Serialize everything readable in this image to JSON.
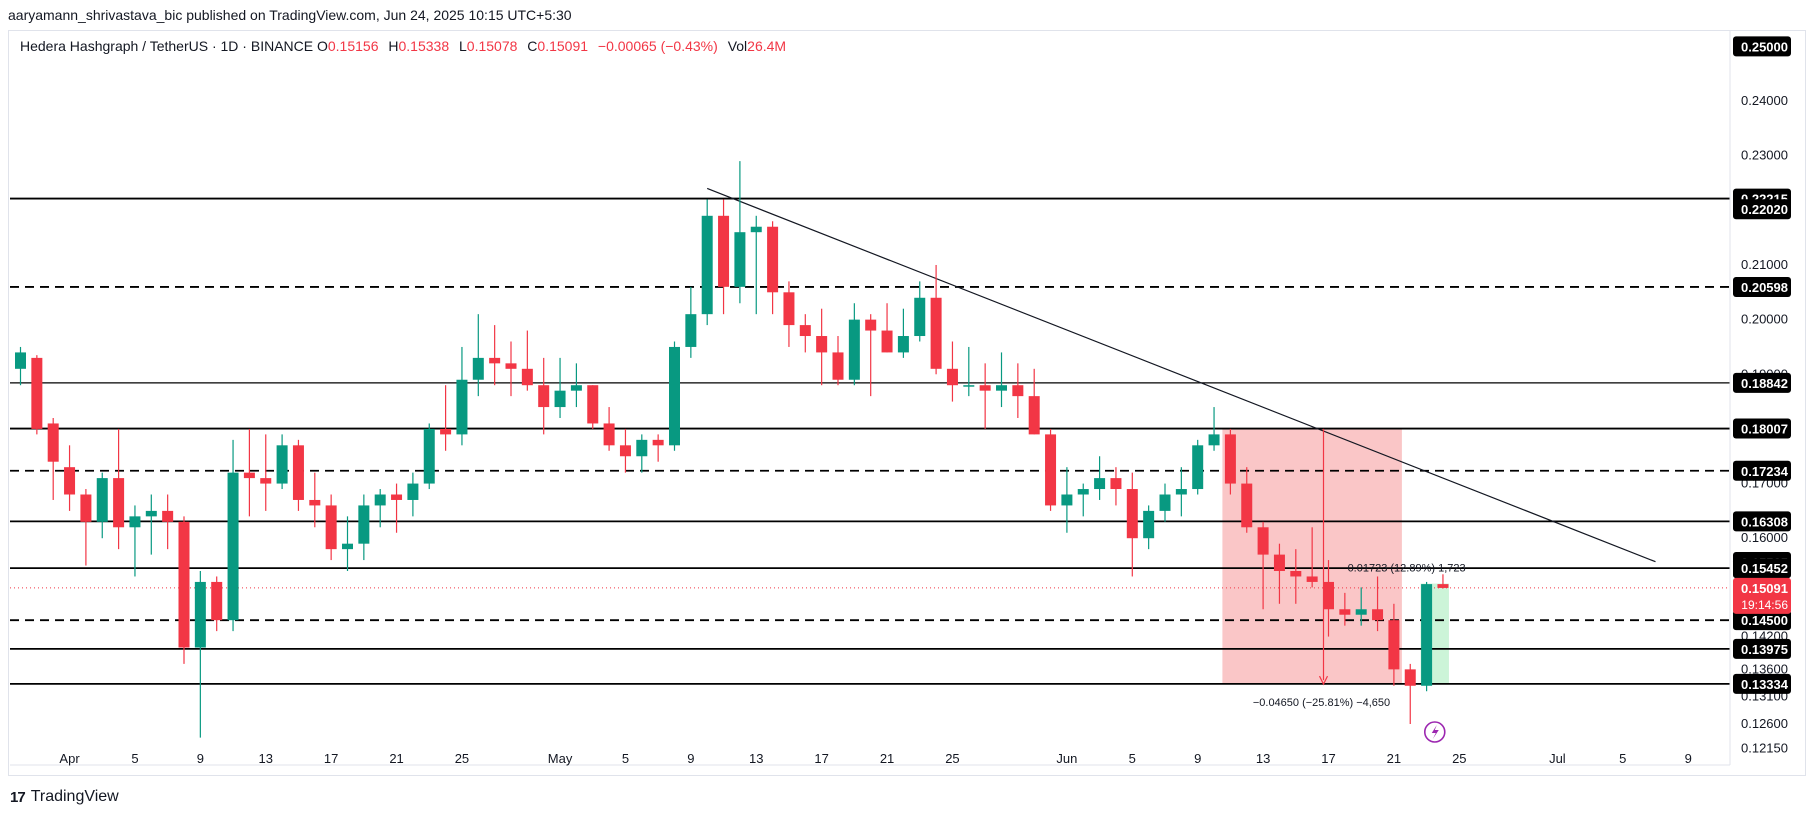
{
  "header": {
    "published": "aaryamann_shrivastava_bic published on TradingView.com, Jun 24, 2025 10:15 UTC+5:30"
  },
  "legend": {
    "symbol": "Hedera Hashgraph / TetherUS · 1D · BINANCE",
    "o_label": "O",
    "o": "0.15156",
    "h_label": "H",
    "h": "0.15338",
    "l_label": "L",
    "l": "0.15078",
    "c_label": "C",
    "c": "0.15091",
    "change": "−0.00065 (−0.43%)",
    "vol_label": "Vol",
    "vol": "26.4M"
  },
  "footer": {
    "brand": "TradingView"
  },
  "colors": {
    "up": "#089981",
    "down": "#f23645",
    "zone": "#f7a7a9",
    "zone_green": "#b7f0c8"
  },
  "chart_data": {
    "type": "candlestick",
    "symbol": "HBAR/USDT",
    "timeframe": "1D",
    "ylim": [
      0.1185,
      0.253
    ],
    "y_ticks": [
      "0.24000",
      "0.23000",
      "0.21000",
      "0.20000",
      "0.19000",
      "0.17000",
      "0.16000",
      "0.14200",
      "0.13600",
      "0.13100",
      "0.12600",
      "0.12150"
    ],
    "x_ticks": [
      {
        "label": "Apr",
        "day": 3
      },
      {
        "label": "5",
        "day": 7
      },
      {
        "label": "9",
        "day": 11
      },
      {
        "label": "13",
        "day": 15
      },
      {
        "label": "17",
        "day": 19
      },
      {
        "label": "21",
        "day": 23
      },
      {
        "label": "25",
        "day": 27
      },
      {
        "label": "May",
        "day": 33
      },
      {
        "label": "5",
        "day": 37
      },
      {
        "label": "9",
        "day": 41
      },
      {
        "label": "13",
        "day": 45
      },
      {
        "label": "17",
        "day": 49
      },
      {
        "label": "21",
        "day": 53
      },
      {
        "label": "25",
        "day": 57
      },
      {
        "label": "Jun",
        "day": 64
      },
      {
        "label": "5",
        "day": 68
      },
      {
        "label": "9",
        "day": 72
      },
      {
        "label": "13",
        "day": 76
      },
      {
        "label": "17",
        "day": 80
      },
      {
        "label": "21",
        "day": 84
      },
      {
        "label": "25",
        "day": 88
      },
      {
        "label": "Jul",
        "day": 94
      },
      {
        "label": "5",
        "day": 98
      },
      {
        "label": "9",
        "day": 102
      }
    ],
    "levels": [
      {
        "value": 0.25,
        "label": "0.25000",
        "style": "none"
      },
      {
        "value": 0.22215,
        "label": "0.22215",
        "style": "solid"
      },
      {
        "value": 0.2202,
        "label": "0.22020",
        "style": "none"
      },
      {
        "value": 0.20598,
        "label": "0.20598",
        "style": "dashed"
      },
      {
        "value": 0.18842,
        "label": "0.18842",
        "style": "solid-thin"
      },
      {
        "value": 0.18007,
        "label": "0.18007",
        "style": "solid"
      },
      {
        "value": 0.17234,
        "label": "0.17234",
        "style": "dashed"
      },
      {
        "value": 0.16308,
        "label": "0.16308",
        "style": "solid"
      },
      {
        "value": 0.15565,
        "label": "0.15565",
        "style": "none"
      },
      {
        "value": 0.15452,
        "label": "0.15452",
        "style": "solid"
      },
      {
        "value": 0.145,
        "label": "0.14500",
        "style": "dashed"
      },
      {
        "value": 0.13975,
        "label": "0.13975",
        "style": "solid"
      },
      {
        "value": 0.13334,
        "label": "0.13334",
        "style": "solid"
      }
    ],
    "last_price": {
      "value": 0.15091,
      "label": "0.15091",
      "countdown": "19:14:56"
    },
    "candles": [
      {
        "d": 0,
        "o": 0.191,
        "h": 0.195,
        "l": 0.188,
        "c": 0.194
      },
      {
        "d": 1,
        "o": 0.193,
        "h": 0.1935,
        "l": 0.179,
        "c": 0.18
      },
      {
        "d": 2,
        "o": 0.181,
        "h": 0.182,
        "l": 0.167,
        "c": 0.174
      },
      {
        "d": 3,
        "o": 0.173,
        "h": 0.177,
        "l": 0.165,
        "c": 0.168
      },
      {
        "d": 4,
        "o": 0.168,
        "h": 0.169,
        "l": 0.155,
        "c": 0.163
      },
      {
        "d": 5,
        "o": 0.163,
        "h": 0.172,
        "l": 0.16,
        "c": 0.171
      },
      {
        "d": 6,
        "o": 0.171,
        "h": 0.18,
        "l": 0.158,
        "c": 0.162
      },
      {
        "d": 7,
        "o": 0.162,
        "h": 0.166,
        "l": 0.153,
        "c": 0.164
      },
      {
        "d": 8,
        "o": 0.164,
        "h": 0.168,
        "l": 0.157,
        "c": 0.165
      },
      {
        "d": 9,
        "o": 0.165,
        "h": 0.168,
        "l": 0.158,
        "c": 0.163
      },
      {
        "d": 10,
        "o": 0.163,
        "h": 0.164,
        "l": 0.137,
        "c": 0.14
      },
      {
        "d": 11,
        "o": 0.14,
        "h": 0.154,
        "l": 0.1235,
        "c": 0.152
      },
      {
        "d": 12,
        "o": 0.152,
        "h": 0.153,
        "l": 0.143,
        "c": 0.145
      },
      {
        "d": 13,
        "o": 0.145,
        "h": 0.178,
        "l": 0.143,
        "c": 0.172
      },
      {
        "d": 14,
        "o": 0.172,
        "h": 0.18,
        "l": 0.164,
        "c": 0.171
      },
      {
        "d": 15,
        "o": 0.171,
        "h": 0.179,
        "l": 0.165,
        "c": 0.17
      },
      {
        "d": 16,
        "o": 0.17,
        "h": 0.179,
        "l": 0.169,
        "c": 0.177
      },
      {
        "d": 17,
        "o": 0.177,
        "h": 0.178,
        "l": 0.165,
        "c": 0.167
      },
      {
        "d": 18,
        "o": 0.167,
        "h": 0.172,
        "l": 0.162,
        "c": 0.166
      },
      {
        "d": 19,
        "o": 0.166,
        "h": 0.168,
        "l": 0.156,
        "c": 0.158
      },
      {
        "d": 20,
        "o": 0.158,
        "h": 0.164,
        "l": 0.154,
        "c": 0.159
      },
      {
        "d": 21,
        "o": 0.159,
        "h": 0.168,
        "l": 0.156,
        "c": 0.166
      },
      {
        "d": 22,
        "o": 0.166,
        "h": 0.169,
        "l": 0.162,
        "c": 0.168
      },
      {
        "d": 23,
        "o": 0.168,
        "h": 0.17,
        "l": 0.161,
        "c": 0.167
      },
      {
        "d": 24,
        "o": 0.167,
        "h": 0.172,
        "l": 0.164,
        "c": 0.17
      },
      {
        "d": 25,
        "o": 0.17,
        "h": 0.181,
        "l": 0.169,
        "c": 0.18
      },
      {
        "d": 26,
        "o": 0.18,
        "h": 0.188,
        "l": 0.176,
        "c": 0.179
      },
      {
        "d": 27,
        "o": 0.179,
        "h": 0.195,
        "l": 0.177,
        "c": 0.189
      },
      {
        "d": 28,
        "o": 0.189,
        "h": 0.201,
        "l": 0.186,
        "c": 0.193
      },
      {
        "d": 29,
        "o": 0.193,
        "h": 0.199,
        "l": 0.188,
        "c": 0.192
      },
      {
        "d": 30,
        "o": 0.192,
        "h": 0.196,
        "l": 0.186,
        "c": 0.191
      },
      {
        "d": 31,
        "o": 0.191,
        "h": 0.198,
        "l": 0.187,
        "c": 0.188
      },
      {
        "d": 32,
        "o": 0.188,
        "h": 0.193,
        "l": 0.179,
        "c": 0.184
      },
      {
        "d": 33,
        "o": 0.184,
        "h": 0.193,
        "l": 0.182,
        "c": 0.187
      },
      {
        "d": 34,
        "o": 0.187,
        "h": 0.192,
        "l": 0.184,
        "c": 0.188
      },
      {
        "d": 35,
        "o": 0.188,
        "h": 0.188,
        "l": 0.18,
        "c": 0.181
      },
      {
        "d": 36,
        "o": 0.181,
        "h": 0.184,
        "l": 0.176,
        "c": 0.177
      },
      {
        "d": 37,
        "o": 0.177,
        "h": 0.18,
        "l": 0.172,
        "c": 0.175
      },
      {
        "d": 38,
        "o": 0.175,
        "h": 0.179,
        "l": 0.172,
        "c": 0.178
      },
      {
        "d": 39,
        "o": 0.178,
        "h": 0.179,
        "l": 0.174,
        "c": 0.177
      },
      {
        "d": 40,
        "o": 0.177,
        "h": 0.196,
        "l": 0.176,
        "c": 0.195
      },
      {
        "d": 41,
        "o": 0.195,
        "h": 0.206,
        "l": 0.193,
        "c": 0.201
      },
      {
        "d": 42,
        "o": 0.201,
        "h": 0.222,
        "l": 0.199,
        "c": 0.219
      },
      {
        "d": 43,
        "o": 0.219,
        "h": 0.222,
        "l": 0.201,
        "c": 0.206
      },
      {
        "d": 44,
        "o": 0.206,
        "h": 0.229,
        "l": 0.203,
        "c": 0.216
      },
      {
        "d": 45,
        "o": 0.216,
        "h": 0.219,
        "l": 0.201,
        "c": 0.217
      },
      {
        "d": 46,
        "o": 0.217,
        "h": 0.218,
        "l": 0.201,
        "c": 0.205
      },
      {
        "d": 47,
        "o": 0.205,
        "h": 0.207,
        "l": 0.195,
        "c": 0.199
      },
      {
        "d": 48,
        "o": 0.199,
        "h": 0.201,
        "l": 0.194,
        "c": 0.197
      },
      {
        "d": 49,
        "o": 0.197,
        "h": 0.202,
        "l": 0.188,
        "c": 0.194
      },
      {
        "d": 50,
        "o": 0.194,
        "h": 0.197,
        "l": 0.188,
        "c": 0.189
      },
      {
        "d": 51,
        "o": 0.189,
        "h": 0.203,
        "l": 0.188,
        "c": 0.2
      },
      {
        "d": 52,
        "o": 0.2,
        "h": 0.201,
        "l": 0.186,
        "c": 0.198
      },
      {
        "d": 53,
        "o": 0.198,
        "h": 0.203,
        "l": 0.194,
        "c": 0.194
      },
      {
        "d": 54,
        "o": 0.194,
        "h": 0.202,
        "l": 0.193,
        "c": 0.197
      },
      {
        "d": 55,
        "o": 0.197,
        "h": 0.207,
        "l": 0.196,
        "c": 0.204
      },
      {
        "d": 56,
        "o": 0.204,
        "h": 0.21,
        "l": 0.19,
        "c": 0.191
      },
      {
        "d": 57,
        "o": 0.191,
        "h": 0.196,
        "l": 0.185,
        "c": 0.188
      },
      {
        "d": 58,
        "o": 0.188,
        "h": 0.195,
        "l": 0.186,
        "c": 0.188
      },
      {
        "d": 59,
        "o": 0.188,
        "h": 0.192,
        "l": 0.18,
        "c": 0.187
      },
      {
        "d": 60,
        "o": 0.187,
        "h": 0.194,
        "l": 0.184,
        "c": 0.188
      },
      {
        "d": 61,
        "o": 0.188,
        "h": 0.192,
        "l": 0.182,
        "c": 0.186
      },
      {
        "d": 62,
        "o": 0.186,
        "h": 0.191,
        "l": 0.179,
        "c": 0.179
      },
      {
        "d": 63,
        "o": 0.179,
        "h": 0.18,
        "l": 0.165,
        "c": 0.166
      },
      {
        "d": 64,
        "o": 0.166,
        "h": 0.173,
        "l": 0.161,
        "c": 0.168
      },
      {
        "d": 65,
        "o": 0.168,
        "h": 0.17,
        "l": 0.164,
        "c": 0.169
      },
      {
        "d": 66,
        "o": 0.169,
        "h": 0.175,
        "l": 0.167,
        "c": 0.171
      },
      {
        "d": 67,
        "o": 0.171,
        "h": 0.173,
        "l": 0.166,
        "c": 0.169
      },
      {
        "d": 68,
        "o": 0.169,
        "h": 0.172,
        "l": 0.153,
        "c": 0.16
      },
      {
        "d": 69,
        "o": 0.16,
        "h": 0.166,
        "l": 0.158,
        "c": 0.165
      },
      {
        "d": 70,
        "o": 0.165,
        "h": 0.17,
        "l": 0.163,
        "c": 0.168
      },
      {
        "d": 71,
        "o": 0.168,
        "h": 0.173,
        "l": 0.164,
        "c": 0.169
      },
      {
        "d": 72,
        "o": 0.169,
        "h": 0.178,
        "l": 0.168,
        "c": 0.177
      },
      {
        "d": 73,
        "o": 0.177,
        "h": 0.184,
        "l": 0.176,
        "c": 0.179
      },
      {
        "d": 74,
        "o": 0.179,
        "h": 0.18,
        "l": 0.168,
        "c": 0.17
      },
      {
        "d": 75,
        "o": 0.17,
        "h": 0.173,
        "l": 0.161,
        "c": 0.162
      },
      {
        "d": 76,
        "o": 0.162,
        "h": 0.163,
        "l": 0.147,
        "c": 0.157
      },
      {
        "d": 77,
        "o": 0.157,
        "h": 0.159,
        "l": 0.148,
        "c": 0.154
      },
      {
        "d": 78,
        "o": 0.154,
        "h": 0.158,
        "l": 0.148,
        "c": 0.153
      },
      {
        "d": 79,
        "o": 0.153,
        "h": 0.162,
        "l": 0.151,
        "c": 0.152
      },
      {
        "d": 80,
        "o": 0.152,
        "h": 0.156,
        "l": 0.142,
        "c": 0.147
      },
      {
        "d": 81,
        "o": 0.147,
        "h": 0.15,
        "l": 0.144,
        "c": 0.146
      },
      {
        "d": 82,
        "o": 0.146,
        "h": 0.151,
        "l": 0.144,
        "c": 0.147
      },
      {
        "d": 83,
        "o": 0.147,
        "h": 0.153,
        "l": 0.143,
        "c": 0.145
      },
      {
        "d": 84,
        "o": 0.145,
        "h": 0.148,
        "l": 0.133,
        "c": 0.136
      },
      {
        "d": 85,
        "o": 0.136,
        "h": 0.137,
        "l": 0.126,
        "c": 0.133
      },
      {
        "d": 86,
        "o": 0.133,
        "h": 0.152,
        "l": 0.132,
        "c": 0.1516
      },
      {
        "d": 87,
        "o": 0.1516,
        "h": 0.1534,
        "l": 0.1508,
        "c": 0.1509
      }
    ],
    "trendline": {
      "from": {
        "d": 42,
        "v": 0.224
      },
      "to": {
        "d": 100,
        "v": 0.1557
      }
    },
    "short_position": {
      "from_day": 74,
      "to_day": 84,
      "top": 0.18,
      "bottom": 0.1333,
      "label": "−0.04650 (−25.81%) −4,650"
    },
    "rebound_measure": {
      "from_day": 86,
      "to_day": 87,
      "top": 0.1517,
      "bottom": 0.1333,
      "label": "0.01723 (12.89%) 1,723"
    }
  }
}
